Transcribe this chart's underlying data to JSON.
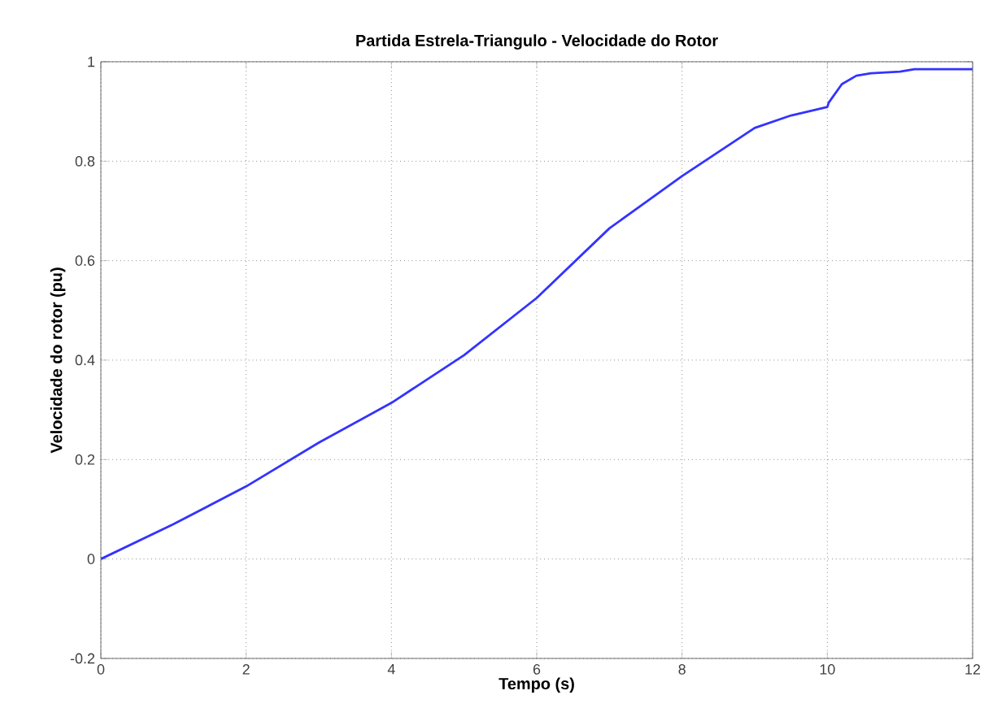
{
  "chart_data": {
    "type": "line",
    "title": "Partida Estrela-Triangulo - Velocidade do Rotor",
    "xlabel": "Tempo (s)",
    "ylabel": "Velocidade do rotor (pu)",
    "xlim": [
      0,
      12
    ],
    "ylim": [
      -0.2,
      1
    ],
    "xticks": [
      0,
      2,
      4,
      6,
      8,
      10,
      12
    ],
    "yticks": [
      -0.2,
      0,
      0.2,
      0.4,
      0.6,
      0.8,
      1
    ],
    "grid": true,
    "series": [
      {
        "color": "#3333ff",
        "x": [
          0,
          1,
          2,
          3,
          4,
          5,
          6,
          7,
          8,
          9,
          9.5,
          10,
          10.02,
          10.2,
          10.4,
          10.6,
          11,
          11.2,
          12
        ],
        "values": [
          0,
          0.07,
          0.146,
          0.234,
          0.314,
          0.41,
          0.525,
          0.665,
          0.77,
          0.867,
          0.892,
          0.909,
          0.918,
          0.955,
          0.972,
          0.977,
          0.98,
          0.985,
          0.985
        ]
      }
    ]
  }
}
